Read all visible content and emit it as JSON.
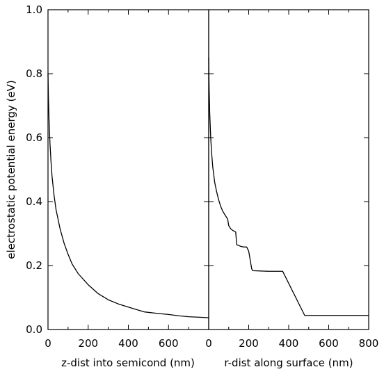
{
  "chart_data": [
    {
      "type": "line",
      "panel": "left",
      "xlabel": "z-dist into semicond (nm)",
      "ylabel": "electrostatic potential energy (eV)",
      "xlim": [
        0,
        800
      ],
      "ylim": [
        0,
        1.0
      ],
      "x_ticks": [
        0,
        200,
        400,
        600
      ],
      "x_tick_labels": [
        "0",
        "200",
        "400",
        "600"
      ],
      "y_ticks": [
        0.0,
        0.2,
        0.4,
        0.6,
        0.8,
        1.0
      ],
      "y_tick_labels": [
        "0.0",
        "0.2",
        "0.4",
        "0.6",
        "0.8",
        "1.0"
      ],
      "grid": false,
      "series": [
        {
          "x": [
            0,
            2,
            5,
            10,
            15,
            20,
            30,
            40,
            50,
            60,
            80,
            100,
            120,
            150,
            200,
            250,
            300,
            350,
            400,
            480,
            550,
            600,
            650,
            700,
            800
          ],
          "y": [
            0.8,
            0.73,
            0.66,
            0.58,
            0.525,
            0.48,
            0.42,
            0.375,
            0.345,
            0.315,
            0.27,
            0.235,
            0.205,
            0.175,
            0.14,
            0.112,
            0.093,
            0.08,
            0.07,
            0.055,
            0.05,
            0.047,
            0.043,
            0.04,
            0.037
          ]
        }
      ]
    },
    {
      "type": "line",
      "panel": "right",
      "xlabel": "r-dist along surface (nm)",
      "xlim": [
        0,
        800
      ],
      "ylim": [
        0,
        1.0
      ],
      "x_ticks": [
        0,
        200,
        400,
        600,
        800
      ],
      "x_tick_labels": [
        "0",
        "200",
        "400",
        "600",
        "800"
      ],
      "grid": false,
      "series": [
        {
          "x": [
            0,
            2,
            5,
            10,
            15,
            20,
            30,
            40,
            50,
            60,
            70,
            80,
            90,
            95,
            100,
            110,
            120,
            135,
            140,
            150,
            160,
            175,
            190,
            200,
            215,
            220,
            260,
            300,
            370,
            480,
            520,
            560,
            600,
            700,
            800
          ],
          "y": [
            0.85,
            0.76,
            0.68,
            0.6,
            0.55,
            0.51,
            0.46,
            0.43,
            0.405,
            0.385,
            0.37,
            0.36,
            0.35,
            0.345,
            0.325,
            0.315,
            0.31,
            0.305,
            0.265,
            0.263,
            0.26,
            0.258,
            0.258,
            0.245,
            0.19,
            0.184,
            0.183,
            0.182,
            0.182,
            0.044,
            0.044,
            0.044,
            0.044,
            0.044,
            0.044
          ]
        }
      ]
    }
  ]
}
